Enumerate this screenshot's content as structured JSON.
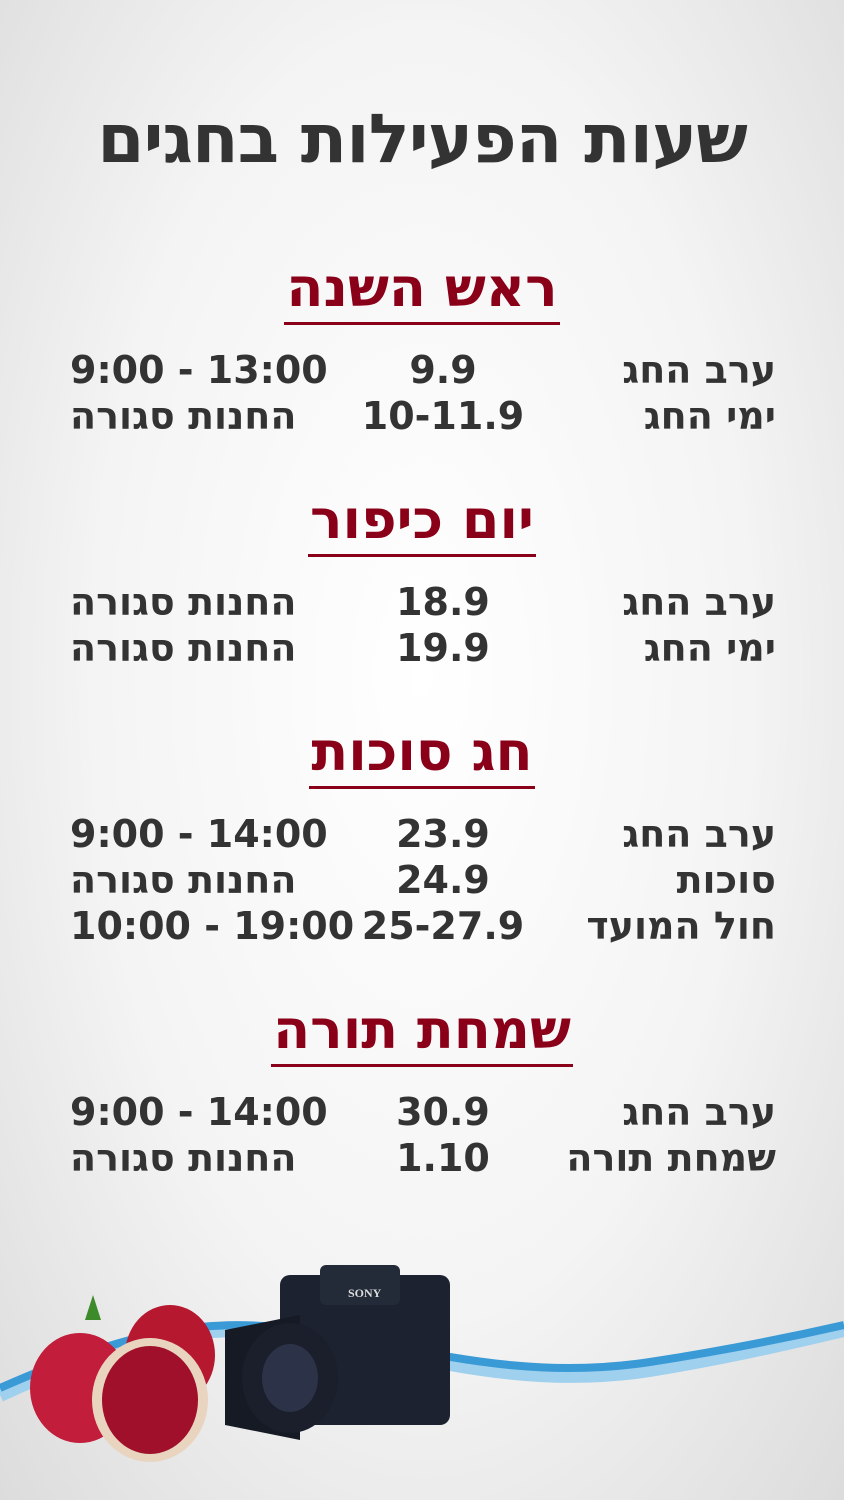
{
  "title": "שעות הפעילות בחגים",
  "sections": [
    {
      "heading": "ראש השנה",
      "rows": [
        {
          "label": "ערב החג",
          "date": "9.9",
          "hours": "9:00 - 13:00"
        },
        {
          "label": "ימי החג",
          "date": "10-11.9",
          "hours": "החנות סגורה"
        }
      ]
    },
    {
      "heading": "יום כיפור",
      "rows": [
        {
          "label": "ערב החג",
          "date": "18.9",
          "hours": "החנות סגורה"
        },
        {
          "label": "ימי החג",
          "date": "19.9",
          "hours": "החנות סגורה"
        }
      ]
    },
    {
      "heading": "חג סוכות",
      "rows": [
        {
          "label": "ערב החג",
          "date": "23.9",
          "hours": "9:00 - 14:00"
        },
        {
          "label": "סוכות",
          "date": "24.9",
          "hours": "החנות סגורה"
        },
        {
          "label": "חול המועד",
          "date": "25-27.9",
          "hours": "10:00 - 19:00"
        }
      ]
    },
    {
      "heading": "שמחת תורה",
      "rows": [
        {
          "label": "ערב החג",
          "date": "30.9",
          "hours": "9:00 - 14:00"
        },
        {
          "label": "שמחת תורה",
          "date": "1.10",
          "hours": "החנות סגורה"
        }
      ]
    }
  ],
  "artwork": {
    "camera_brand": "SONY",
    "heading_color": "#8b0019",
    "text_color": "#333333",
    "wave_color": "#3a9ad6"
  }
}
